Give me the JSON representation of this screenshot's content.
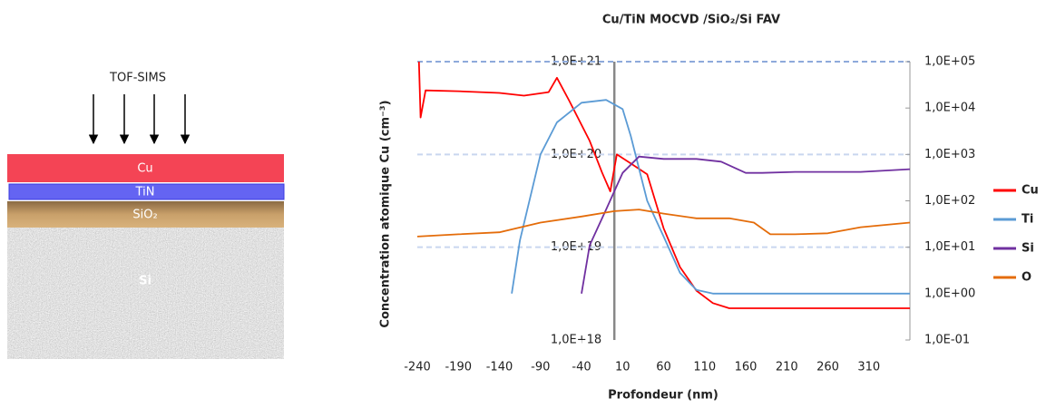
{
  "diagram": {
    "probe": "TOF-SIMS",
    "layers": [
      "Cu",
      "TiN",
      "SiO₂",
      "Si"
    ]
  },
  "chart_data": {
    "type": "line",
    "title": "Cu/TiN MOCVD /SiO₂/Si FAV",
    "x_label": "Profondeur (nm)",
    "y_label": "Concentration atomique Cu (cm⁻³)",
    "xlim": [
      -240,
      360
    ],
    "xticks": [
      -240,
      -190,
      -140,
      -90,
      -40,
      10,
      60,
      110,
      160,
      210,
      260,
      310
    ],
    "ylim": [
      1e+18,
      1e+21
    ],
    "y_log": true,
    "yticks": [
      {
        "value": 1e+18,
        "label": "1,0E+18"
      },
      {
        "value": 1e+19,
        "label": "1,0E+19"
      },
      {
        "value": 1e+20,
        "label": "1,0E+20"
      },
      {
        "value": 1e+21,
        "label": "1,0E+21"
      }
    ],
    "y2lim": [
      0.1,
      100000
    ],
    "y2_log": true,
    "y2ticks": [
      {
        "value": 0.1,
        "label": "1,0E-01"
      },
      {
        "value": 1,
        "label": "1,0E+00"
      },
      {
        "value": 10,
        "label": "1,0E+01"
      },
      {
        "value": 100,
        "label": "1,0E+02"
      },
      {
        "value": 1000,
        "label": "1,0E+03"
      },
      {
        "value": 10000,
        "label": "1,0E+04"
      },
      {
        "value": 100000,
        "label": "1,0E+05"
      }
    ],
    "grid": true,
    "legend": "right",
    "series": [
      {
        "name": "Cu",
        "color": "#ff0000",
        "x": [
          -238,
          -236,
          -230,
          -190,
          -140,
          -110,
          -80,
          -70,
          -55,
          -30,
          -15,
          -5,
          3,
          20,
          40,
          60,
          80,
          100,
          120,
          140,
          200,
          300,
          360
        ],
        "values": [
          1e+21,
          2.5e+20,
          4.9e+20,
          4.8e+20,
          4.6e+20,
          4.3e+20,
          4.7e+20,
          6.7e+20,
          3.8e+20,
          1.4e+20,
          6.4e+19,
          4e+19,
          1e+20,
          8e+19,
          6.1e+19,
          1.6e+19,
          6.1e+18,
          3.4e+18,
          2.5e+18,
          2.2e+18,
          2.2e+18,
          2.2e+18,
          2.2e+18
        ]
      },
      {
        "name": "Ti",
        "color": "#5b9bd5",
        "axis": "y2",
        "x": [
          -125,
          -115,
          -90,
          -70,
          -40,
          -10,
          10,
          20,
          40,
          60,
          80,
          100,
          120,
          200,
          360
        ],
        "values": [
          1,
          14,
          1000,
          4900,
          13000,
          15000,
          9500,
          2500,
          100,
          17,
          2.8,
          1.2,
          1,
          1,
          1
        ]
      },
      {
        "name": "Si",
        "color": "#7030a0",
        "axis": "y2",
        "x": [
          -40,
          -30,
          -10,
          10,
          30,
          60,
          100,
          130,
          160,
          180,
          220,
          260,
          300,
          360
        ],
        "values": [
          1,
          11,
          65,
          400,
          900,
          800,
          800,
          700,
          400,
          400,
          420,
          420,
          420,
          480
        ]
      },
      {
        "name": "O",
        "color": "#e46c0a",
        "axis": "y2",
        "x": [
          -240,
          -190,
          -140,
          -90,
          -40,
          0,
          30,
          60,
          100,
          140,
          170,
          190,
          220,
          260,
          300,
          360
        ],
        "values": [
          17,
          19,
          21,
          34,
          46,
          60,
          65,
          53,
          42,
          42,
          34,
          19,
          19,
          20,
          27,
          34
        ]
      }
    ]
  }
}
